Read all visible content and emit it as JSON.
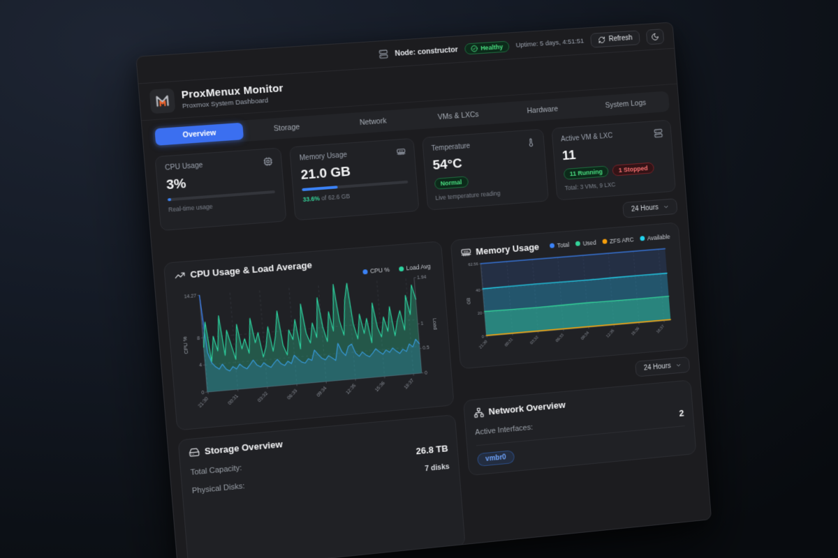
{
  "topbar": {
    "node_label": "Node: constructor",
    "health_label": "Healthy",
    "uptime": "Uptime: 5 days, 4:51:51",
    "refresh_label": "Refresh"
  },
  "header": {
    "title": "ProxMenux Monitor",
    "subtitle": "Proxmox System Dashboard"
  },
  "tabs": {
    "items": [
      {
        "label": "Overview",
        "active": true
      },
      {
        "label": "Storage",
        "active": false
      },
      {
        "label": "Network",
        "active": false
      },
      {
        "label": "VMs & LXCs",
        "active": false
      },
      {
        "label": "Hardware",
        "active": false
      },
      {
        "label": "System Logs",
        "active": false
      }
    ]
  },
  "stats": {
    "cpu": {
      "label": "CPU Usage",
      "value": "3%",
      "percent": 3,
      "caption": "Real-time usage"
    },
    "memory": {
      "label": "Memory Usage",
      "value": "21.0 GB",
      "percent": 33.6,
      "caption_pct": "33.6%",
      "caption_rest": " of 62.6 GB"
    },
    "temperature": {
      "label": "Temperature",
      "value": "54°C",
      "status": "Normal",
      "caption": "Live temperature reading"
    },
    "vms": {
      "label": "Active VM & LXC",
      "value": "11",
      "running": "11 Running",
      "stopped": "1 Stopped",
      "caption": "Total: 3 VMs, 9 LXC"
    }
  },
  "time_range": {
    "label": "24 Hours"
  },
  "storage": {
    "title": "Storage Overview",
    "rows": [
      {
        "label": "Total Capacity:",
        "value": "26.8 TB"
      },
      {
        "label": "Physical Disks:",
        "value": "7 disks"
      }
    ]
  },
  "network": {
    "title": "Network Overview",
    "rows": [
      {
        "label": "Active Interfaces:",
        "value": "2"
      }
    ],
    "interface_badge": "vmbr0"
  },
  "colors": {
    "accent_blue": "#3b6ff0",
    "green": "#34d399",
    "cyan": "#22d3ee",
    "orange": "#f59e0b",
    "red": "#f87171"
  },
  "chart_data": [
    {
      "type": "area",
      "title": "CPU Usage & Load Average",
      "x_ticks": [
        "21:30",
        "00:31",
        "03:32",
        "06:33",
        "09:34",
        "12:35",
        "15:36",
        "18:37"
      ],
      "y_left": {
        "label": "CPU %",
        "ticks": [
          "0",
          "4",
          "8",
          "14.27"
        ],
        "max": 14.27
      },
      "y_right": {
        "label": "Load",
        "ticks": [
          "0",
          "0.5",
          "1",
          "1.94"
        ],
        "max": 1.94
      },
      "grid": true,
      "legend_position": "top-right",
      "series": [
        {
          "name": "CPU %",
          "axis": "left",
          "color": "#3b82f6",
          "values": [
            14.27,
            5.8,
            4.2,
            3.6,
            3.2,
            3.9,
            3.1,
            2.8,
            3.4,
            3.0,
            3.7,
            3.2,
            2.9,
            3.5,
            4.1,
            3.3,
            3.0,
            3.6,
            3.1,
            2.8,
            3.4,
            3.9,
            3.2,
            2.9,
            3.5,
            3.1,
            4.3,
            3.7,
            3.2,
            3.0,
            3.6,
            3.3,
            4.8,
            4.1,
            3.5,
            3.2,
            3.8,
            3.4,
            3.0,
            5.5,
            4.2,
            3.6,
            4.9,
            5.2,
            3.8,
            3.3,
            3.9,
            3.4,
            3.1,
            3.6,
            4.2,
            3.7,
            3.3,
            3.9,
            3.5,
            4.1,
            3.6,
            3.2,
            3.8,
            3.4,
            4.5,
            4.0,
            5.1,
            4.4
          ]
        },
        {
          "name": "Load Avg",
          "axis": "right",
          "color": "#2dd4a0",
          "values": [
            0.9,
            1.4,
            0.6,
            1.1,
            0.8,
            1.5,
            0.7,
            1.2,
            0.9,
            0.6,
            1.3,
            0.8,
            1.0,
            0.7,
            1.4,
            0.9,
            1.1,
            0.6,
            0.8,
            1.2,
            0.7,
            1.0,
            1.5,
            0.8,
            0.6,
            1.1,
            0.9,
            1.3,
            0.7,
            1.6,
            1.0,
            0.8,
            1.2,
            0.9,
            1.7,
            1.1,
            0.8,
            1.4,
            1.0,
            1.94,
            1.2,
            0.9,
            1.6,
            1.94,
            1.1,
            0.8,
            1.3,
            0.9,
            1.2,
            0.7,
            1.5,
            1.0,
            0.8,
            1.2,
            0.9,
            1.4,
            0.8,
            1.1,
            1.3,
            0.9,
            1.6,
            1.2,
            1.8,
            1.5
          ]
        }
      ]
    },
    {
      "type": "area",
      "title": "Memory Usage",
      "x_ticks": [
        "21:30",
        "00:31",
        "03:32",
        "06:33",
        "09:34",
        "12:35",
        "15:36",
        "18:37"
      ],
      "y_left": {
        "label": "GB",
        "ticks": [
          "0",
          "20",
          "40",
          "62.56"
        ],
        "max": 62.56
      },
      "grid": true,
      "legend_position": "top-right",
      "series": [
        {
          "name": "Total",
          "color": "#3b82f6",
          "values": [
            62.56,
            62.56,
            62.56,
            62.56,
            62.56,
            62.56,
            62.56,
            62.56
          ]
        },
        {
          "name": "Used",
          "color": "#34d399",
          "values": [
            21.2,
            21.0,
            20.9,
            21.1,
            21.2,
            21.0,
            20.9,
            21.0
          ]
        },
        {
          "name": "ZFS ARC",
          "color": "#f59e0b",
          "values": [
            0.6,
            0.6,
            0.6,
            0.6,
            0.6,
            0.6,
            0.6,
            0.6
          ]
        },
        {
          "name": "Available",
          "color": "#22d3ee",
          "values": [
            40.8,
            41.0,
            41.2,
            41.0,
            40.9,
            41.1,
            41.2,
            41.1
          ]
        }
      ]
    }
  ]
}
